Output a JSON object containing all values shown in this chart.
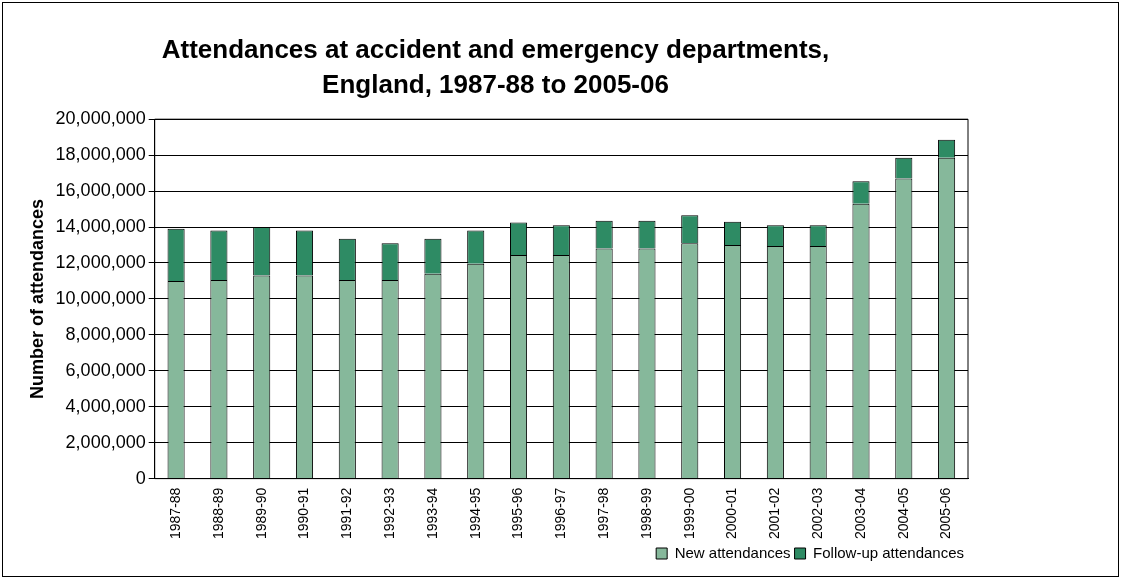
{
  "chart_data": {
    "type": "bar",
    "title": "Attendances at accident and emergency departments, England, 1987-88 to 2005-06",
    "ylabel": "Number of attendances",
    "categories": [
      "1987-88",
      "1988-89",
      "1989-90",
      "1990-91",
      "1991-92",
      "1992-93",
      "1993-94",
      "1994-95",
      "1995-96",
      "1996-97",
      "1997-98",
      "1998-99",
      "1999-00",
      "2000-01",
      "2001-02",
      "2002-03",
      "2003-04",
      "2004-05",
      "2005-06"
    ],
    "stacked": true,
    "series": [
      {
        "name": "New attendances",
        "color": "#86b89b",
        "values": [
          11000000,
          11050000,
          11300000,
          11300000,
          11050000,
          11050000,
          11400000,
          11950000,
          12450000,
          12450000,
          12800000,
          12800000,
          13100000,
          13000000,
          12950000,
          12950000,
          15300000,
          16700000,
          17850000
        ]
      },
      {
        "name": "Follow-up attendances",
        "color": "#2e8b64",
        "values": [
          2900000,
          2750000,
          2700000,
          2500000,
          2300000,
          2050000,
          1950000,
          1850000,
          1800000,
          1650000,
          1550000,
          1550000,
          1550000,
          1300000,
          1150000,
          1150000,
          1250000,
          1150000,
          1000000
        ]
      }
    ],
    "ylim": [
      0,
      20000000
    ],
    "yticks": [
      0,
      {
        "value": 2000000,
        "label": "2,000,000"
      },
      {
        "value": 4000000,
        "label": "4,000,000"
      },
      {
        "value": 6000000,
        "label": "6,000,000"
      },
      {
        "value": 8000000,
        "label": "8,000,000"
      },
      {
        "value": 10000000,
        "label": "10,000,000"
      },
      {
        "value": 12000000,
        "label": "12,000,000"
      },
      {
        "value": 14000000,
        "label": "14,000,000"
      },
      {
        "value": 16000000,
        "label": "16,000,000"
      },
      {
        "value": 18000000,
        "label": "18,000,000"
      },
      {
        "value": 20000000,
        "label": "20,000,000"
      }
    ],
    "grid": "y",
    "legend": "bottom right"
  }
}
